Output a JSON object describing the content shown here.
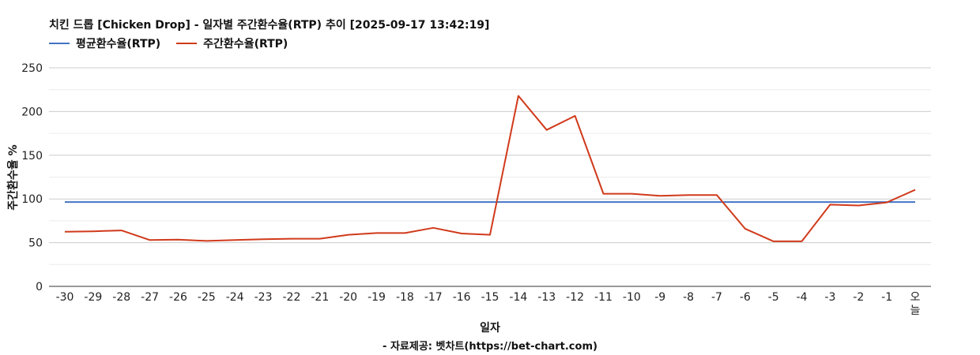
{
  "chart_data": {
    "type": "line",
    "title": "치킨 드롭 [Chicken Drop] - 일자별 주간환수율(RTP) 추이 [2025-09-17 13:42:19]",
    "xlabel": "일자",
    "ylabel": "주간환수율 %",
    "source": "- 자료제공: 벳차트(https://bet-chart.com)",
    "categories": [
      "-30",
      "-29",
      "-28",
      "-27",
      "-26",
      "-25",
      "-24",
      "-23",
      "-22",
      "-21",
      "-20",
      "-19",
      "-18",
      "-17",
      "-16",
      "-15",
      "-14",
      "-13",
      "-12",
      "-11",
      "-10",
      "-9",
      "-8",
      "-7",
      "-6",
      "-5",
      "-4",
      "-3",
      "-2",
      "-1",
      "오늘"
    ],
    "ylim": [
      0,
      250
    ],
    "yticks": [
      0,
      50,
      100,
      150,
      200,
      250
    ],
    "grid": true,
    "legend_position": "top-left",
    "series": [
      {
        "name": "평균환수율(RTP)",
        "color": "#4472c4",
        "values": [
          96.5,
          96.5,
          96.5,
          96.5,
          96.5,
          96.5,
          96.5,
          96.5,
          96.5,
          96.5,
          96.5,
          96.5,
          96.5,
          96.5,
          96.5,
          96.5,
          96.5,
          96.5,
          96.5,
          96.5,
          96.5,
          96.5,
          96.5,
          96.5,
          96.5,
          96.5,
          96.5,
          96.5,
          96.5,
          96.5,
          96.5
        ]
      },
      {
        "name": "주간환수율(RTP)",
        "color": "#d03a1b",
        "values": [
          62.5,
          63,
          64,
          53,
          53.5,
          52,
          53,
          54,
          54.5,
          54.5,
          59,
          61,
          61,
          67,
          60.5,
          59,
          218,
          179,
          195,
          106,
          106,
          103.5,
          104.5,
          104.5,
          66,
          51.5,
          51.5,
          93.5,
          92.5,
          96,
          110.5
        ]
      }
    ]
  }
}
